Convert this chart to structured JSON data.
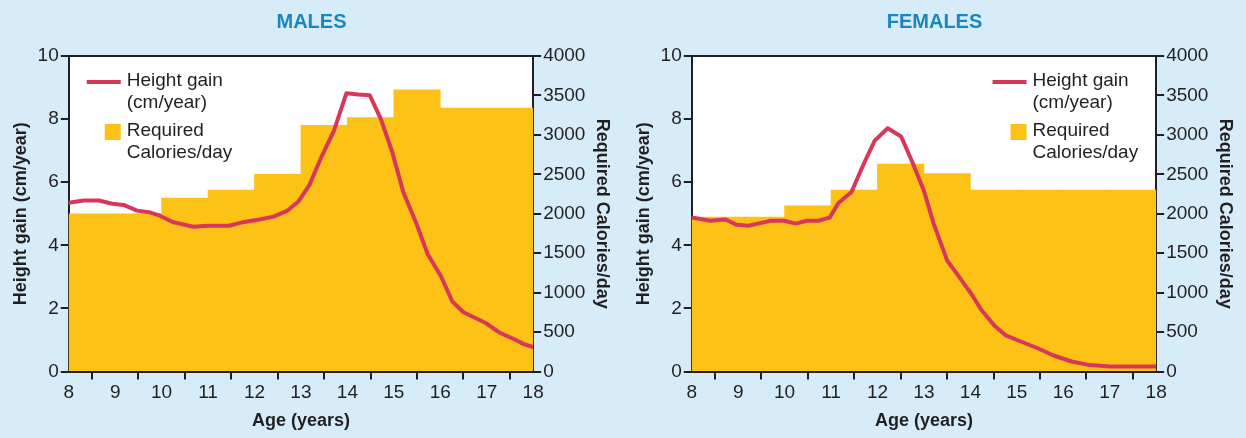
{
  "chart_data": [
    {
      "type": "bar",
      "title": "MALES",
      "xlabel": "Age (years)",
      "ylabel": "Height gain (cm/year)",
      "y2label": "Required Calories/day",
      "xlim": [
        8,
        18
      ],
      "xticks": [
        8,
        9,
        10,
        11,
        12,
        13,
        14,
        15,
        16,
        17,
        18
      ],
      "ylim": [
        0,
        10
      ],
      "yticks": [
        0,
        2,
        4,
        6,
        8,
        10
      ],
      "y2lim": [
        0,
        4000
      ],
      "y2ticks": [
        0,
        500,
        1000,
        1500,
        2000,
        2500,
        3000,
        3500,
        4000
      ],
      "grid": false,
      "legend": "top left",
      "series": [
        {
          "name": "Height gain (cm/year)",
          "type": "line",
          "color": "#d9375a",
          "x": [
            8,
            8.32,
            8.65,
            8.94,
            9.18,
            9.47,
            9.76,
            9.96,
            10.24,
            10.68,
            11,
            11.45,
            11.74,
            12.08,
            12.41,
            12.7,
            12.94,
            13.18,
            13.42,
            13.71,
            13.98,
            14.24,
            14.48,
            14.72,
            14.96,
            15.2,
            15.49,
            15.73,
            16.02,
            16.26,
            16.5,
            16.98,
            17.27,
            17.56,
            17.8,
            18
          ],
          "values": [
            5.35,
            5.42,
            5.42,
            5.32,
            5.28,
            5.1,
            5.04,
            4.94,
            4.74,
            4.59,
            4.62,
            4.62,
            4.73,
            4.81,
            4.91,
            5.09,
            5.38,
            5.9,
            6.73,
            7.63,
            8.82,
            8.78,
            8.76,
            8.01,
            6.99,
            5.71,
            4.68,
            3.72,
            3.01,
            2.22,
            1.88,
            1.54,
            1.24,
            1.05,
            0.87,
            0.78
          ]
        },
        {
          "name": "Required Calories/day",
          "axis": "y2",
          "color": "#fcc216",
          "x": [
            8.5,
            9.5,
            10.5,
            11.5,
            12.5,
            13.5,
            14.5,
            15.5,
            16.5,
            17.5
          ],
          "values": [
            2000,
            2000,
            2200,
            2300,
            2500,
            3120,
            3220,
            3570,
            3340,
            3340
          ]
        }
      ]
    },
    {
      "type": "bar",
      "title": "FEMALES",
      "xlabel": "Age (years)",
      "ylabel": "Height gain (cm/year)",
      "y2label": "Required Calories/day",
      "xlim": [
        8,
        18
      ],
      "xticks": [
        8,
        9,
        10,
        11,
        12,
        13,
        14,
        15,
        16,
        17,
        18
      ],
      "ylim": [
        0,
        10
      ],
      "yticks": [
        0,
        2,
        4,
        6,
        8,
        10
      ],
      "y2lim": [
        0,
        4000
      ],
      "y2ticks": [
        0,
        500,
        1000,
        1500,
        2000,
        2500,
        3000,
        3500,
        4000
      ],
      "grid": false,
      "legend": "top right",
      "series": [
        {
          "name": "Height gain (cm/year)",
          "type": "line",
          "color": "#d9375a",
          "x": [
            8,
            8.39,
            8.73,
            8.97,
            9.22,
            9.7,
            9.99,
            10.24,
            10.48,
            10.73,
            10.97,
            11.16,
            11.44,
            11.7,
            11.94,
            12.22,
            12.51,
            12.77,
            13,
            13.21,
            13.5,
            13.79,
            14.04,
            14.23,
            14.52,
            14.76,
            15.06,
            15.45,
            15.79,
            16.18,
            16.52,
            17,
            18
          ],
          "values": [
            4.88,
            4.78,
            4.82,
            4.65,
            4.62,
            4.78,
            4.78,
            4.69,
            4.78,
            4.78,
            4.88,
            5.34,
            5.69,
            6.57,
            7.32,
            7.71,
            7.45,
            6.57,
            5.73,
            4.69,
            3.52,
            2.94,
            2.42,
            1.97,
            1.45,
            1.15,
            0.97,
            0.74,
            0.51,
            0.32,
            0.22,
            0.16,
            0.16
          ]
        },
        {
          "name": "Required Calories/day",
          "axis": "y2",
          "color": "#fcc216",
          "x": [
            8.5,
            9.5,
            10.5,
            11.5,
            12.5,
            13.5,
            14.5,
            15.5,
            16.5,
            17.5
          ],
          "values": [
            1960,
            1960,
            2100,
            2300,
            2630,
            2510,
            2300,
            2300,
            2300,
            2300
          ]
        }
      ]
    }
  ]
}
